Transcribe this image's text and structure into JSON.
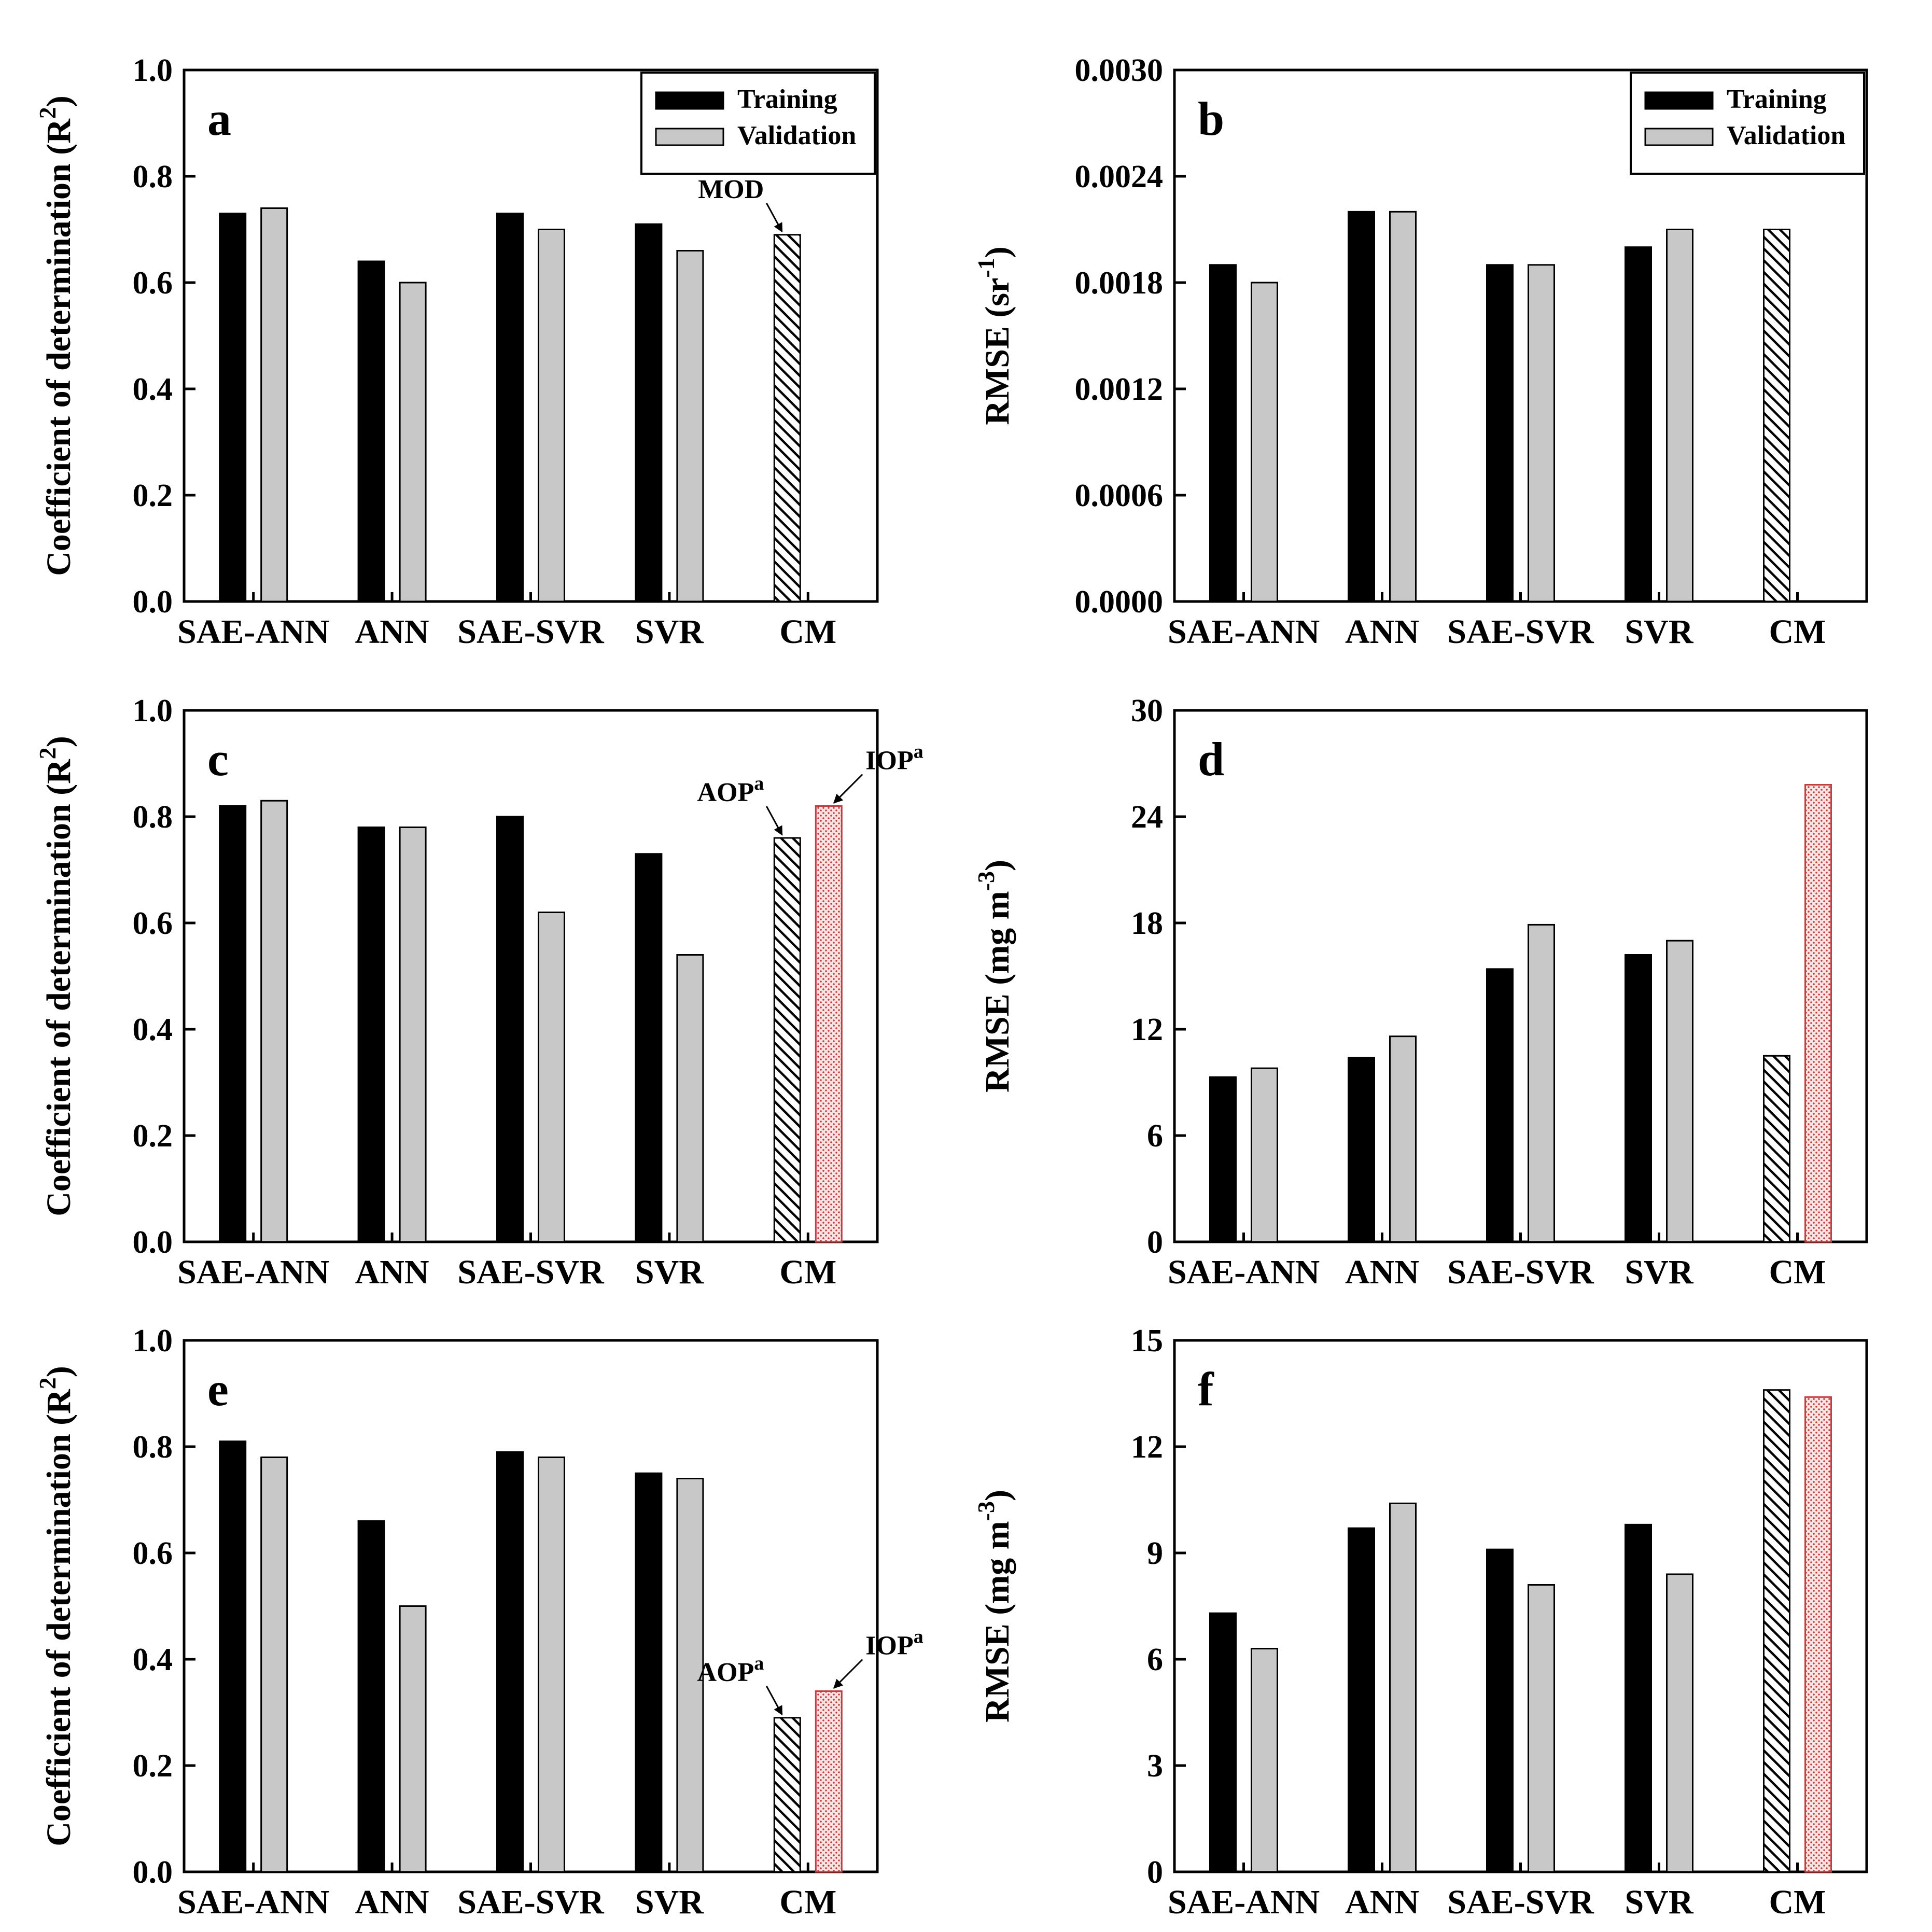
{
  "colors": {
    "training": "#000000",
    "validation": "#c8c8c8",
    "cm_aop_fill": "#7a5a5a",
    "cm_iop_fill": "#f4b8b8",
    "cm_iop_stroke": "#c04040"
  },
  "chart_data": [
    {
      "panel": "a",
      "type": "bar",
      "title": "",
      "categories": [
        "SAE-ANN",
        "ANN",
        "SAE-SVR",
        "SVR",
        "CM"
      ],
      "series": [
        {
          "name": "Training",
          "values": [
            0.73,
            0.64,
            0.73,
            0.71,
            null
          ]
        },
        {
          "name": "Validation",
          "values": [
            0.74,
            0.6,
            0.7,
            0.66,
            null
          ]
        }
      ],
      "cm_bars": [
        {
          "label": "MOD",
          "value": 0.69,
          "style": "hatch"
        }
      ],
      "ylabel": "Coefficient of determination (R2)",
      "ylabel_main": "Coefficient of determination (R",
      "ylabel_sup": "2",
      "ylabel_tail": ")",
      "ylim": [
        0,
        1.0
      ],
      "yticks": [
        "0.0",
        "0.2",
        "0.4",
        "0.6",
        "0.8",
        "1.0"
      ],
      "legend": [
        "Training",
        "Validation"
      ],
      "legend_position": "top-right"
    },
    {
      "panel": "b",
      "type": "bar",
      "title": "",
      "categories": [
        "SAE-ANN",
        "ANN",
        "SAE-SVR",
        "SVR",
        "CM"
      ],
      "series": [
        {
          "name": "Training",
          "values": [
            0.0019,
            0.0022,
            0.0019,
            0.002,
            null
          ]
        },
        {
          "name": "Validation",
          "values": [
            0.0018,
            0.0022,
            0.0019,
            0.0021,
            null
          ]
        }
      ],
      "cm_bars": [
        {
          "label": "",
          "value": 0.0021,
          "style": "hatch"
        }
      ],
      "ylabel": "RMSE (sr-1)",
      "ylabel_main": "RMSE (sr",
      "ylabel_sup": "-1",
      "ylabel_tail": ")",
      "ylim": [
        0,
        0.003
      ],
      "yticks": [
        "0.0000",
        "0.0006",
        "0.0012",
        "0.0018",
        "0.0024",
        "0.0030"
      ],
      "legend": [
        "Training",
        "Validation"
      ],
      "legend_position": "top-right"
    },
    {
      "panel": "c",
      "type": "bar",
      "title": "",
      "categories": [
        "SAE-ANN",
        "ANN",
        "SAE-SVR",
        "SVR",
        "CM"
      ],
      "series": [
        {
          "name": "Training",
          "values": [
            0.82,
            0.78,
            0.8,
            0.73,
            null
          ]
        },
        {
          "name": "Validation",
          "values": [
            0.83,
            0.78,
            0.62,
            0.54,
            null
          ]
        }
      ],
      "cm_bars": [
        {
          "label": "AOP",
          "label_sup": "a",
          "value": 0.76,
          "style": "hatch"
        },
        {
          "label": "IOP",
          "label_sup": "a",
          "value": 0.82,
          "style": "dots"
        }
      ],
      "ylabel": "Coefficient of determination (R2)",
      "ylabel_main": "Coefficient of determination (R",
      "ylabel_sup": "2",
      "ylabel_tail": ")",
      "ylim": [
        0,
        1.0
      ],
      "yticks": [
        "0.0",
        "0.2",
        "0.4",
        "0.6",
        "0.8",
        "1.0"
      ]
    },
    {
      "panel": "d",
      "type": "bar",
      "title": "",
      "categories": [
        "SAE-ANN",
        "ANN",
        "SAE-SVR",
        "SVR",
        "CM"
      ],
      "series": [
        {
          "name": "Training",
          "values": [
            9.3,
            10.4,
            15.4,
            16.2,
            null
          ]
        },
        {
          "name": "Validation",
          "values": [
            9.8,
            11.6,
            17.9,
            17.0,
            null
          ]
        }
      ],
      "cm_bars": [
        {
          "label": "",
          "value": 10.5,
          "style": "hatch"
        },
        {
          "label": "",
          "value": 25.8,
          "style": "dots"
        }
      ],
      "ylabel": "RMSE (mg m-3)",
      "ylabel_main": "RMSE (mg m",
      "ylabel_sup": "-3",
      "ylabel_tail": ")",
      "ylim": [
        0,
        30
      ],
      "yticks": [
        "0",
        "6",
        "12",
        "18",
        "24",
        "30"
      ]
    },
    {
      "panel": "e",
      "type": "bar",
      "title": "",
      "categories": [
        "SAE-ANN",
        "ANN",
        "SAE-SVR",
        "SVR",
        "CM"
      ],
      "series": [
        {
          "name": "Training",
          "values": [
            0.81,
            0.66,
            0.79,
            0.75,
            null
          ]
        },
        {
          "name": "Validation",
          "values": [
            0.78,
            0.5,
            0.78,
            0.74,
            null
          ]
        }
      ],
      "cm_bars": [
        {
          "label": "AOP",
          "label_sup": "a",
          "value": 0.29,
          "style": "hatch"
        },
        {
          "label": "IOP",
          "label_sup": "a",
          "value": 0.34,
          "style": "dots"
        }
      ],
      "ylabel": "Coefficient of determination (R2)",
      "ylabel_main": "Coefficient of determination (R",
      "ylabel_sup": "2",
      "ylabel_tail": ")",
      "ylim": [
        0,
        1.0
      ],
      "yticks": [
        "0.0",
        "0.2",
        "0.4",
        "0.6",
        "0.8",
        "1.0"
      ]
    },
    {
      "panel": "f",
      "type": "bar",
      "title": "",
      "categories": [
        "SAE-ANN",
        "ANN",
        "SAE-SVR",
        "SVR",
        "CM"
      ],
      "series": [
        {
          "name": "Training",
          "values": [
            7.3,
            9.7,
            9.1,
            9.8,
            null
          ]
        },
        {
          "name": "Validation",
          "values": [
            6.3,
            10.4,
            8.1,
            8.4,
            null
          ]
        }
      ],
      "cm_bars": [
        {
          "label": "",
          "value": 13.6,
          "style": "hatch"
        },
        {
          "label": "",
          "value": 13.4,
          "style": "dots"
        }
      ],
      "ylabel": "RMSE (mg m-3)",
      "ylabel_main": "RMSE (mg m",
      "ylabel_sup": "-3",
      "ylabel_tail": ")",
      "ylim": [
        0,
        15
      ],
      "yticks": [
        "0",
        "3",
        "6",
        "9",
        "12",
        "15"
      ]
    }
  ]
}
